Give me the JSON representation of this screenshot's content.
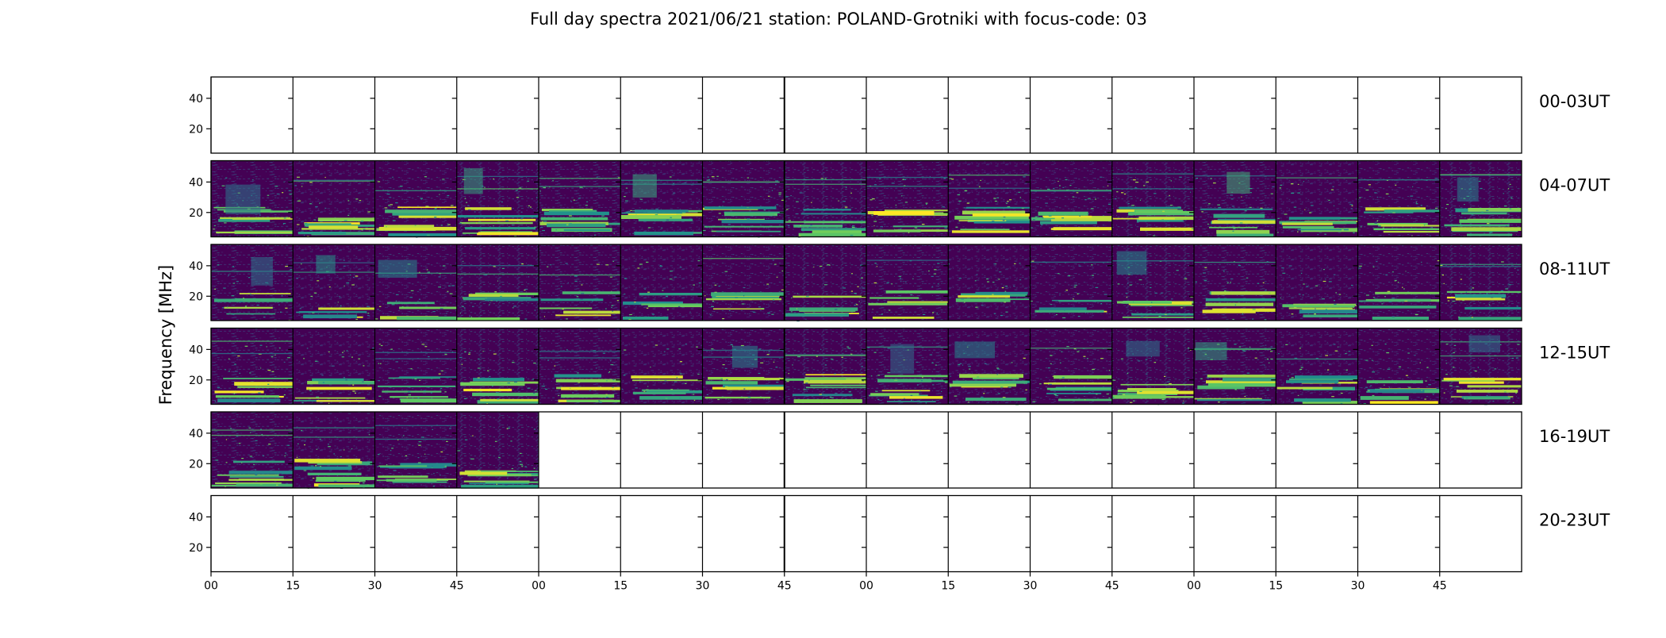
{
  "chart_data": {
    "type": "heatmap",
    "title": "Full day spectra 2021/06/21 station: POLAND-Grotniki with focus-code: 03",
    "ylabel": "Frequency [MHz]",
    "xlabel": "",
    "y_range_mhz": [
      4,
      54
    ],
    "y_ticks": [
      20,
      40
    ],
    "x_tick_labels": [
      "00",
      "15",
      "30",
      "45",
      "00",
      "15",
      "30",
      "45",
      "00",
      "15",
      "30",
      "45",
      "00",
      "15",
      "30",
      "45"
    ],
    "minutes_per_panel": 15,
    "panels_per_row": 16,
    "colormap": "viridis",
    "colors": {
      "low": "#440154",
      "mid": "#21918c",
      "high": "#fde725"
    },
    "rows": [
      {
        "label": "00-03UT",
        "panels_with_data": 0
      },
      {
        "label": "04-07UT",
        "panels_with_data": 16
      },
      {
        "label": "08-11UT",
        "panels_with_data": 16
      },
      {
        "label": "12-15UT",
        "panels_with_data": 16
      },
      {
        "label": "16-19UT",
        "panels_with_data": 4
      },
      {
        "label": "20-23UT",
        "panels_with_data": 0
      }
    ]
  }
}
